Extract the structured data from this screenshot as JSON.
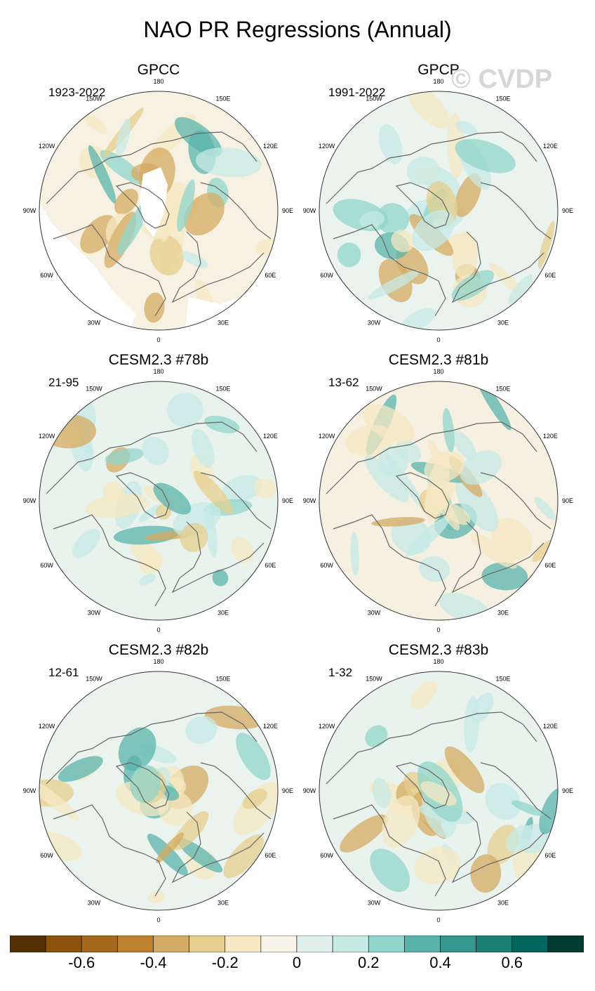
{
  "title": "NAO PR Regressions (Annual)",
  "watermark": "© CVDP",
  "panels": [
    {
      "title": "GPCC",
      "period": "1923-2022",
      "missing": true,
      "sst_base": "#f7f1e4"
    },
    {
      "title": "GPCP",
      "period": "1991-2022",
      "missing": false,
      "sst_base": "#eaf3ee"
    },
    {
      "title": "CESM2.3 #78b",
      "period": "21-95",
      "missing": false,
      "sst_base": "#e9f3ee"
    },
    {
      "title": "CESM2.3 #81b",
      "period": "13-62",
      "missing": false,
      "sst_base": "#f6f0e2"
    },
    {
      "title": "CESM2.3 #82b",
      "period": "12-61",
      "missing": false,
      "sst_base": "#eaf3ee"
    },
    {
      "title": "CESM2.3 #83b",
      "period": "1-32",
      "missing": false,
      "sst_base": "#e9f3ee"
    }
  ],
  "lon_labels": [
    "180",
    "150E",
    "120E",
    "90E",
    "60E",
    "30E",
    "0",
    "30W",
    "60W",
    "90W",
    "120W",
    "150W"
  ],
  "colorbar": {
    "colors": [
      "#543005",
      "#8c510a",
      "#a6681c",
      "#bf812d",
      "#d4ab62",
      "#e6cf8e",
      "#f5e8c3",
      "#f6f3e8",
      "#e2f1ee",
      "#c7eae5",
      "#90d6cc",
      "#5ab4ac",
      "#35978f",
      "#1a7f74",
      "#01665e",
      "#003c30"
    ],
    "tick_labels": [
      "-0.6",
      "-0.4",
      "-0.2",
      "0",
      "0.2",
      "0.4",
      "0.6"
    ]
  }
}
